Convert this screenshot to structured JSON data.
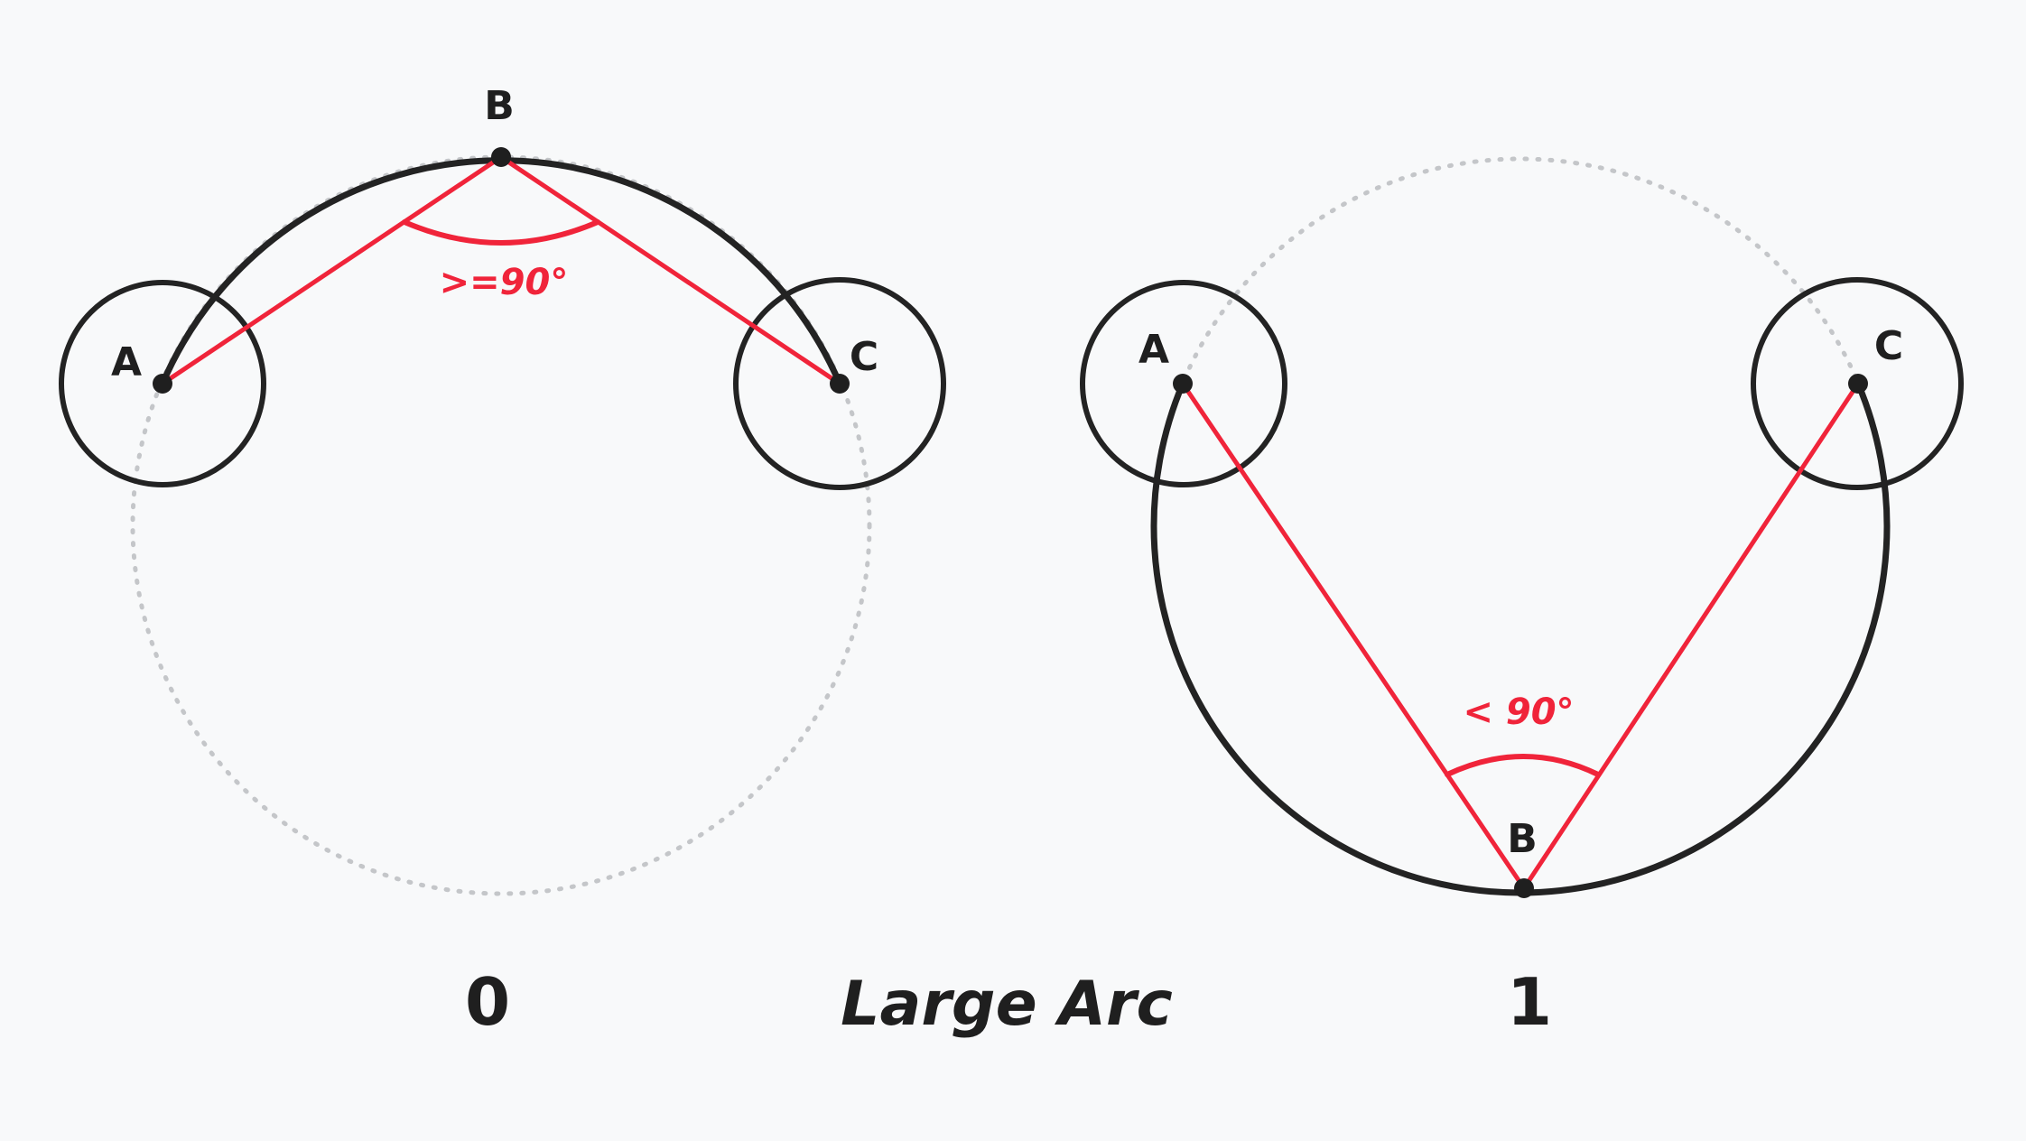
{
  "title": "Large Arc",
  "left": {
    "caption": "0",
    "angle_label": ">=90°",
    "points": {
      "a": "A",
      "b": "B",
      "c": "C"
    }
  },
  "right": {
    "caption": "1",
    "angle_label": "< 90°",
    "points": {
      "a": "A",
      "b": "B",
      "c": "C"
    }
  },
  "colors": {
    "stroke": "#232323",
    "accent": "#f0243a",
    "ghost": "#c4c6c9",
    "background": "#f8f9fa"
  }
}
